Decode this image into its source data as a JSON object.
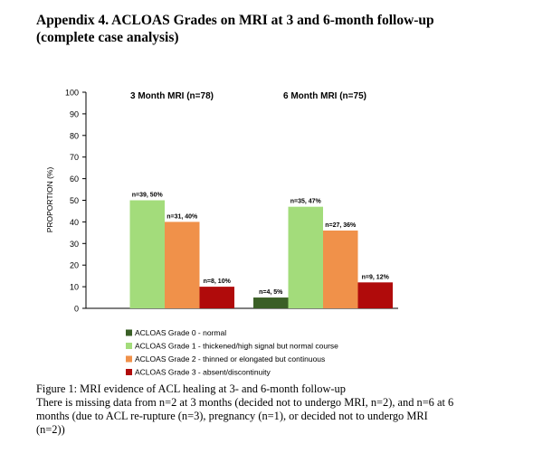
{
  "title_line1": "Appendix 4. ACLOAS Grades on MRI at 3 and 6-month follow-up",
  "title_line2": "(complete case analysis)",
  "chart_data": {
    "type": "bar",
    "groups": [
      "3 Month MRI (n=78)",
      "6 Month MRI (n=75)"
    ],
    "ylabel": "PROPORTION (%)",
    "ylim": [
      0,
      100
    ],
    "yticks": [
      0,
      10,
      20,
      30,
      40,
      50,
      60,
      70,
      80,
      90,
      100
    ],
    "series": [
      {
        "name": "ACLOAS Grade 0 - normal",
        "color": "#3a5f26",
        "values": [
          null,
          5
        ],
        "labels": [
          "",
          "n=4, 5%"
        ]
      },
      {
        "name": "ACLOAS Grade 1 - thickened/high signal but normal course",
        "color": "#a3dc7b",
        "values": [
          50,
          47
        ],
        "labels": [
          "n=39, 50%",
          "n=35, 47%"
        ]
      },
      {
        "name": "ACLOAS Grade 2 - thinned or elongated but continuous",
        "color": "#f0914a",
        "values": [
          40,
          36
        ],
        "labels": [
          "n=31, 40%",
          "n=27, 36%"
        ]
      },
      {
        "name": "ACLOAS Grade 3 - absent/discontinuity",
        "color": "#b00b0b",
        "values": [
          10,
          12
        ],
        "labels": [
          "n=8, 10%",
          "n=9, 12%"
        ]
      }
    ]
  },
  "caption": {
    "line1": "Figure 1: MRI evidence of ACL healing at 3- and 6-month follow-up",
    "line2": "There is missing data from n=2 at 3 months (decided not to undergo MRI, n=2), and n=6 at 6",
    "line3": "months (due to ACL re-rupture (n=3), pregnancy (n=1), or decided not to undergo MRI",
    "line4": "(n=2))"
  }
}
